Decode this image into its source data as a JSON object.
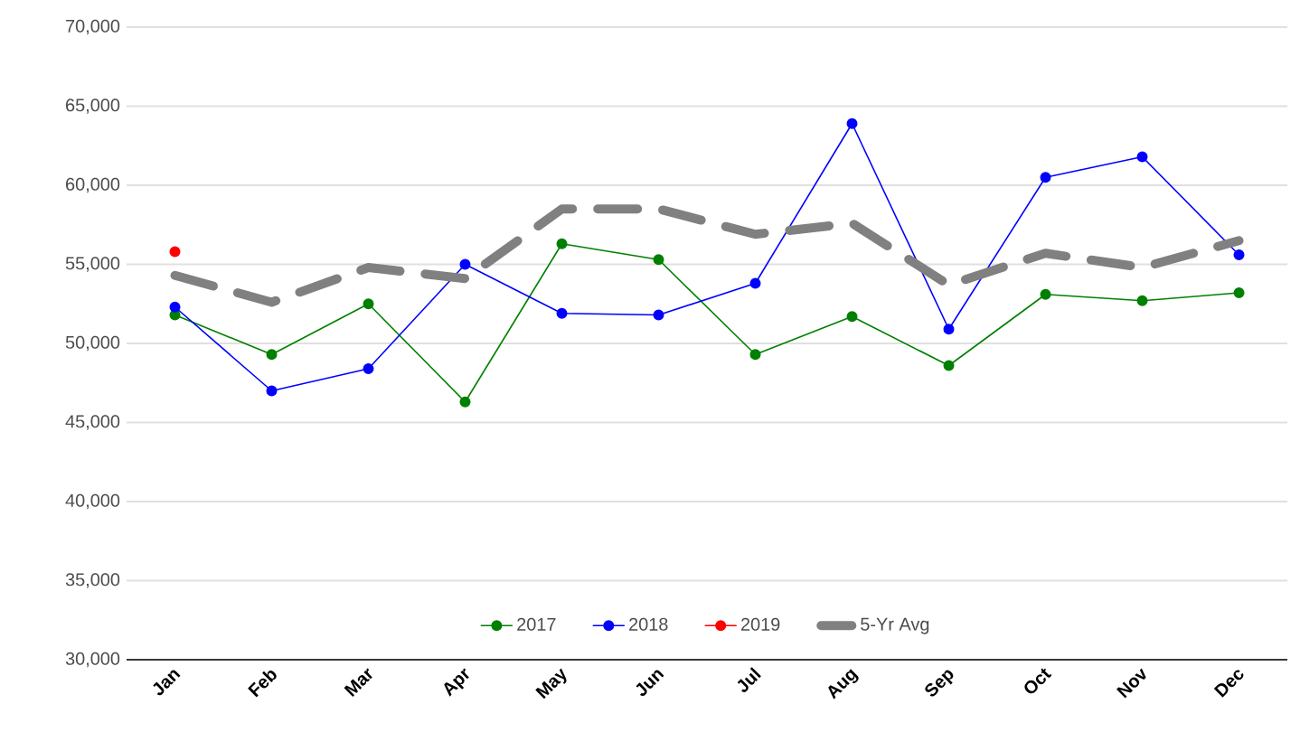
{
  "chart_data": {
    "type": "line",
    "categories": [
      "Jan",
      "Feb",
      "Mar",
      "Apr",
      "May",
      "Jun",
      "Jul",
      "Aug",
      "Sep",
      "Oct",
      "Nov",
      "Dec"
    ],
    "series": [
      {
        "name": "2017",
        "color": "#008000",
        "marker": "circle",
        "line_style": "solid",
        "values": [
          51800,
          49300,
          52500,
          46300,
          56300,
          55300,
          49300,
          51700,
          48600,
          53100,
          52700,
          53200
        ]
      },
      {
        "name": "2018",
        "color": "#0000ff",
        "marker": "circle",
        "line_style": "solid",
        "values": [
          52300,
          47000,
          48400,
          55000,
          51900,
          51800,
          53800,
          63900,
          50900,
          60500,
          61800,
          55600
        ]
      },
      {
        "name": "2019",
        "color": "#ff0000",
        "marker": "circle",
        "line_style": "solid",
        "values": [
          55800,
          null,
          null,
          null,
          null,
          null,
          null,
          null,
          null,
          null,
          null,
          null
        ]
      },
      {
        "name": "5-Yr Avg",
        "color": "#808080",
        "marker": "none",
        "line_style": "dashed",
        "values": [
          54300,
          52600,
          54800,
          54100,
          58500,
          58500,
          56900,
          57600,
          53700,
          55700,
          54800,
          56500
        ]
      }
    ],
    "ylim": [
      30000,
      70000
    ],
    "yticks": [
      {
        "value": 30000,
        "label": "30,000"
      },
      {
        "value": 35000,
        "label": "35,000"
      },
      {
        "value": 40000,
        "label": "40,000"
      },
      {
        "value": 45000,
        "label": "45,000"
      },
      {
        "value": 50000,
        "label": "50,000"
      },
      {
        "value": 55000,
        "label": "55,000"
      },
      {
        "value": 60000,
        "label": "60,000"
      },
      {
        "value": 65000,
        "label": "65,000"
      },
      {
        "value": 70000,
        "label": "70,000"
      }
    ],
    "grid": "y",
    "legend": "bottom"
  }
}
